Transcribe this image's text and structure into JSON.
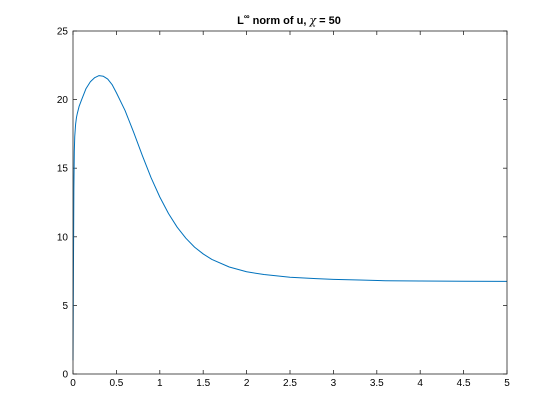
{
  "chart_data": {
    "type": "line",
    "title": {
      "base": "L",
      "superscript": "∞",
      "middle": " norm of u, ",
      "symbol": "χ",
      "suffix": " = 50"
    },
    "xlabel": "",
    "ylabel": "",
    "xlim": [
      0,
      5
    ],
    "ylim": [
      0,
      25
    ],
    "xticks": [
      0,
      0.5,
      1,
      1.5,
      2,
      2.5,
      3,
      3.5,
      4,
      4.5,
      5
    ],
    "xtick_labels": [
      "0",
      "0.5",
      "1",
      "1.5",
      "2",
      "2.5",
      "3",
      "3.5",
      "4",
      "4.5",
      "5"
    ],
    "yticks": [
      0,
      5,
      10,
      15,
      20,
      25
    ],
    "ytick_labels": [
      "0",
      "5",
      "10",
      "15",
      "20",
      "25"
    ],
    "grid": false,
    "line_color": "#0072bd",
    "series": [
      {
        "x": [
          0,
          0.005,
          0.01,
          0.015,
          0.02,
          0.03,
          0.04,
          0.05,
          0.07,
          0.1,
          0.15,
          0.2,
          0.25,
          0.3,
          0.35,
          0.4,
          0.45,
          0.5,
          0.6,
          0.7,
          0.8,
          0.9,
          1.0,
          1.1,
          1.2,
          1.3,
          1.4,
          1.5,
          1.6,
          1.8,
          2.0,
          2.2,
          2.5,
          2.8,
          3.0,
          3.3,
          3.6,
          4.0,
          4.5,
          5.0
        ],
        "y": [
          1.0,
          7.5,
          13.5,
          16.2,
          17.3,
          18.2,
          18.7,
          19.0,
          19.5,
          20.0,
          20.8,
          21.3,
          21.6,
          21.75,
          21.7,
          21.5,
          21.1,
          20.5,
          19.2,
          17.6,
          15.9,
          14.3,
          12.9,
          11.7,
          10.7,
          9.9,
          9.25,
          8.75,
          8.35,
          7.8,
          7.45,
          7.25,
          7.05,
          6.95,
          6.9,
          6.85,
          6.8,
          6.78,
          6.76,
          6.75
        ]
      }
    ]
  }
}
